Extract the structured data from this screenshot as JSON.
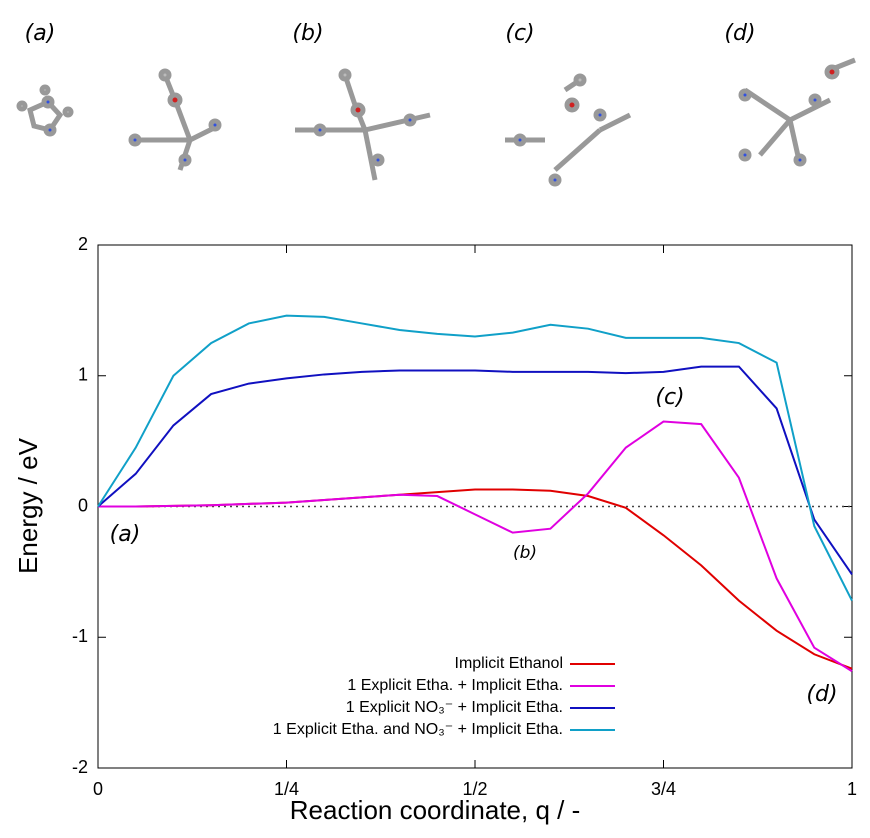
{
  "chart_data": {
    "type": "line",
    "xlabel": "Reaction coordinate, q / -",
    "ylabel": "Energy / eV",
    "x": [
      0,
      0.05,
      0.1,
      0.15,
      0.2,
      0.25,
      0.3,
      0.35,
      0.4,
      0.45,
      0.5,
      0.55,
      0.6,
      0.65,
      0.7,
      0.75,
      0.8,
      0.85,
      0.9,
      0.95,
      1
    ],
    "series": [
      {
        "name": "Implicit Ethanol",
        "color": "#e00000",
        "values": [
          0,
          0,
          0.005,
          0.01,
          0.02,
          0.03,
          0.05,
          0.07,
          0.09,
          0.11,
          0.13,
          0.13,
          0.12,
          0.08,
          -0.01,
          -0.22,
          -0.45,
          -0.72,
          -0.95,
          -1.13,
          -1.24
        ]
      },
      {
        "name": "1 Explicit Etha. + Implicit Etha.",
        "color": "#e000e0",
        "values": [
          0,
          0,
          0.005,
          0.01,
          0.02,
          0.03,
          0.05,
          0.07,
          0.09,
          0.08,
          -0.06,
          -0.2,
          -0.17,
          0.1,
          0.45,
          0.65,
          0.63,
          0.22,
          -0.55,
          -1.08,
          -1.26
        ]
      },
      {
        "name": "1 Explicit NO₃⁻ + Implicit Etha.",
        "color": "#1010c0",
        "values": [
          0,
          0.25,
          0.62,
          0.86,
          0.94,
          0.98,
          1.01,
          1.03,
          1.04,
          1.04,
          1.04,
          1.03,
          1.03,
          1.03,
          1.02,
          1.03,
          1.07,
          1.07,
          0.75,
          -0.1,
          -0.52
        ]
      },
      {
        "name": "1 Explicit Etha. and NO₃⁻ + Implicit Etha.",
        "color": "#10a0c8",
        "values": [
          0,
          0.45,
          1.0,
          1.25,
          1.4,
          1.46,
          1.45,
          1.4,
          1.35,
          1.32,
          1.3,
          1.33,
          1.39,
          1.36,
          1.29,
          1.29,
          1.29,
          1.25,
          1.1,
          -0.15,
          -0.72
        ]
      }
    ],
    "xlim": [
      0,
      1
    ],
    "xticks": [
      0,
      {
        "value": 0.25,
        "label": "1/4"
      },
      {
        "value": 0.5,
        "label": "1/2"
      },
      {
        "value": 0.75,
        "label": "3/4"
      },
      1
    ],
    "ylim": [
      -2,
      2
    ],
    "yticks": [
      -2,
      -1,
      0,
      1,
      2
    ],
    "zero_line": true,
    "legend": "lower-left",
    "annotations": [
      "(a)",
      "(b)",
      "(c)",
      "(d)"
    ],
    "structure_labels": [
      "(a)",
      "(b)",
      "(c)",
      "(d)"
    ]
  }
}
